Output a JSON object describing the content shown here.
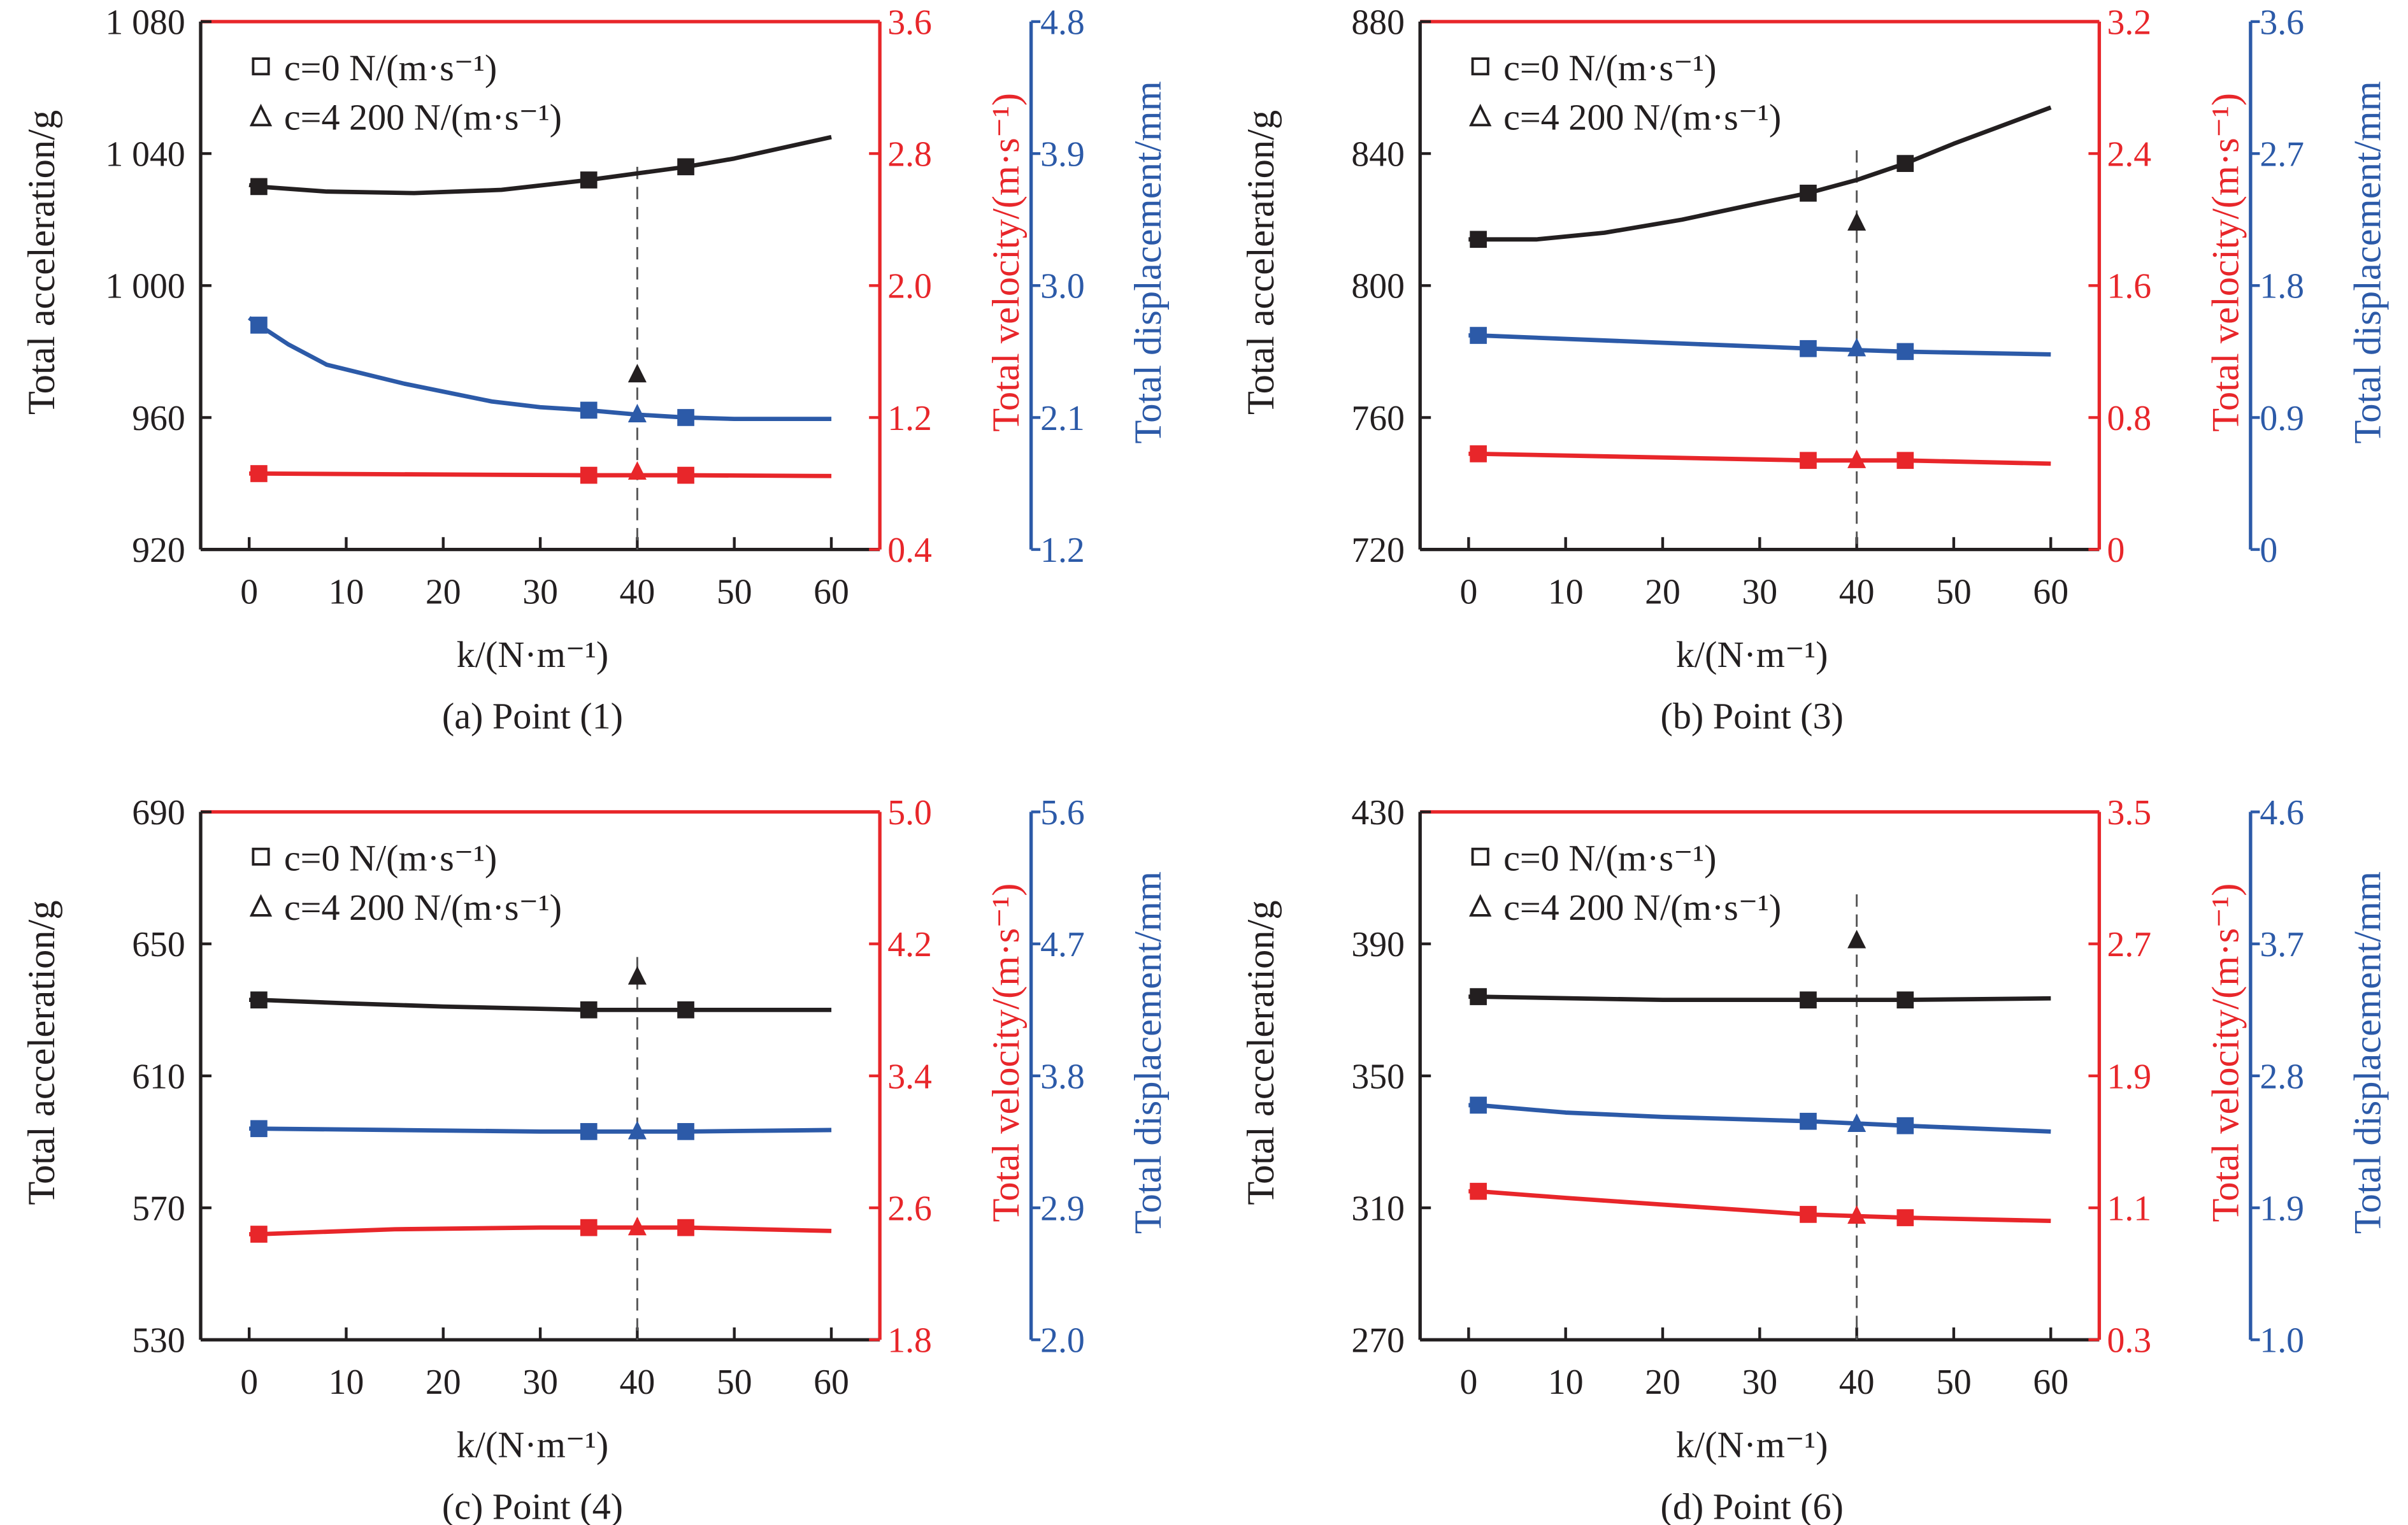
{
  "colors": {
    "acceleration": "#231f20",
    "velocity": "#e8262a",
    "displacement": "#2c5aa8",
    "guide": "#555555"
  },
  "chart_data": [
    {
      "type": "line",
      "caption": "(a) Point (1)",
      "xlabel": "k/(N·m⁻¹)",
      "xlim": [
        -5,
        65
      ],
      "xticks": [
        0,
        10,
        20,
        30,
        40,
        50,
        60
      ],
      "xtick_labels": [
        "0",
        "10",
        "20",
        "30",
        "40",
        "50",
        "60"
      ],
      "axes": {
        "left": {
          "label": "Total acceleration/g",
          "range": [
            920,
            1080
          ],
          "ticks": [
            920,
            960,
            1000,
            1040,
            1080
          ],
          "tick_labels": [
            "920",
            "960",
            "1 000",
            "1 040",
            "1 080"
          ]
        },
        "red": {
          "label": "Total velocity/(m·s⁻¹)",
          "range": [
            0.4,
            3.6
          ],
          "ticks": [
            0.4,
            1.2,
            2.0,
            2.8,
            3.6
          ],
          "tick_labels": [
            "0.4",
            "1.2",
            "2.0",
            "2.8",
            "3.6"
          ]
        },
        "blue": {
          "label": "Total displacement/mm",
          "range": [
            1.2,
            4.8
          ],
          "ticks": [
            1.2,
            2.1,
            3.0,
            3.9,
            4.8
          ],
          "tick_labels": [
            "1.2",
            "2.1",
            "3.0",
            "3.9",
            "4.8"
          ]
        }
      },
      "legend": {
        "placement": "top-left",
        "entries": [
          {
            "marker": "square",
            "label": "c=0 N/(m·s⁻¹)"
          },
          {
            "marker": "triangle",
            "label": "c=4 200 N/(m·s⁻¹)"
          }
        ]
      },
      "guide_line": {
        "k": 40,
        "top": 1036
      },
      "series": [
        {
          "quantity": "acceleration",
          "axis": "left",
          "curve": [
            [
              0,
              1030.5
            ],
            [
              1,
              1030
            ],
            [
              8,
              1028.5
            ],
            [
              17,
              1028
            ],
            [
              26,
              1029
            ],
            [
              35,
              1032
            ],
            [
              45,
              1036
            ],
            [
              50,
              1038.5
            ],
            [
              60,
              1045
            ]
          ],
          "markers": [
            [
              1,
              1030
            ],
            [
              35,
              1032
            ],
            [
              45,
              1036
            ]
          ],
          "c4200": [
            40,
            973
          ]
        },
        {
          "quantity": "displacement",
          "axis": "blue",
          "curve": [
            [
              0,
              2.78
            ],
            [
              1,
              2.73
            ],
            [
              4,
              2.6
            ],
            [
              8,
              2.46
            ],
            [
              16,
              2.33
            ],
            [
              25,
              2.21
            ],
            [
              30,
              2.17
            ],
            [
              35,
              2.15
            ],
            [
              40,
              2.12
            ],
            [
              45,
              2.1
            ],
            [
              50,
              2.09
            ],
            [
              60,
              2.09
            ]
          ],
          "markers": [
            [
              1,
              2.73
            ],
            [
              35,
              2.15
            ],
            [
              45,
              2.1
            ]
          ],
          "c4200": [
            40,
            2.12
          ]
        },
        {
          "quantity": "velocity",
          "axis": "red",
          "curve": [
            [
              0,
              0.86
            ],
            [
              1,
              0.86
            ],
            [
              35,
              0.85
            ],
            [
              45,
              0.85
            ],
            [
              60,
              0.845
            ]
          ],
          "markers": [
            [
              1,
              0.86
            ],
            [
              35,
              0.85
            ],
            [
              45,
              0.85
            ]
          ],
          "c4200": [
            40,
            0.87
          ]
        }
      ]
    },
    {
      "type": "line",
      "caption": "(b) Point (3)",
      "xlabel": "k/(N·m⁻¹)",
      "xlim": [
        -5,
        65
      ],
      "xticks": [
        0,
        10,
        20,
        30,
        40,
        50,
        60
      ],
      "xtick_labels": [
        "0",
        "10",
        "20",
        "30",
        "40",
        "50",
        "60"
      ],
      "axes": {
        "left": {
          "label": "Total acceleration/g",
          "range": [
            720,
            880
          ],
          "ticks": [
            720,
            760,
            800,
            840,
            880
          ],
          "tick_labels": [
            "720",
            "760",
            "800",
            "840",
            "880"
          ]
        },
        "red": {
          "label": "Total velocity/(m·s⁻¹)",
          "range": [
            0,
            3.2
          ],
          "ticks": [
            0,
            0.8,
            1.6,
            2.4,
            3.2
          ],
          "tick_labels": [
            "0",
            "0.8",
            "1.6",
            "2.4",
            "3.2"
          ]
        },
        "blue": {
          "label": "Total displacement/mm",
          "range": [
            0,
            3.6
          ],
          "ticks": [
            0,
            0.9,
            1.8,
            2.7,
            3.6
          ],
          "tick_labels": [
            "0",
            "0.9",
            "1.8",
            "2.7",
            "3.6"
          ]
        }
      },
      "legend": {
        "placement": "top-left",
        "entries": [
          {
            "marker": "square",
            "label": "c=0 N/(m·s⁻¹)"
          },
          {
            "marker": "triangle",
            "label": "c=4 200 N/(m·s⁻¹)"
          }
        ]
      },
      "guide_line": {
        "k": 40,
        "top": 841
      },
      "series": [
        {
          "quantity": "acceleration",
          "axis": "left",
          "curve": [
            [
              0,
              814
            ],
            [
              1,
              814
            ],
            [
              7,
              814
            ],
            [
              14,
              816
            ],
            [
              22,
              820
            ],
            [
              30,
              825
            ],
            [
              35,
              828
            ],
            [
              40,
              832
            ],
            [
              45,
              837
            ],
            [
              50,
              843
            ],
            [
              60,
              854
            ]
          ],
          "markers": [
            [
              1,
              814
            ],
            [
              35,
              828
            ],
            [
              45,
              837
            ]
          ],
          "c4200": [
            40,
            819
          ]
        },
        {
          "quantity": "displacement",
          "axis": "blue",
          "curve": [
            [
              0,
              1.46
            ],
            [
              1,
              1.46
            ],
            [
              35,
              1.37
            ],
            [
              45,
              1.35
            ],
            [
              60,
              1.33
            ]
          ],
          "markers": [
            [
              1,
              1.46
            ],
            [
              35,
              1.37
            ],
            [
              45,
              1.35
            ]
          ],
          "c4200": [
            40,
            1.37
          ]
        },
        {
          "quantity": "velocity",
          "axis": "red",
          "curve": [
            [
              0,
              0.58
            ],
            [
              1,
              0.58
            ],
            [
              35,
              0.54
            ],
            [
              45,
              0.54
            ],
            [
              60,
              0.52
            ]
          ],
          "markers": [
            [
              1,
              0.58
            ],
            [
              35,
              0.54
            ],
            [
              45,
              0.54
            ]
          ],
          "c4200": [
            40,
            0.54
          ]
        }
      ]
    },
    {
      "type": "line",
      "caption": "(c) Point (4)",
      "xlabel": "k/(N·m⁻¹)",
      "xlim": [
        -5,
        65
      ],
      "xticks": [
        0,
        10,
        20,
        30,
        40,
        50,
        60
      ],
      "xtick_labels": [
        "0",
        "10",
        "20",
        "30",
        "40",
        "50",
        "60"
      ],
      "axes": {
        "left": {
          "label": "Total acceleration/g",
          "range": [
            530,
            690
          ],
          "ticks": [
            530,
            570,
            610,
            650,
            690
          ],
          "tick_labels": [
            "530",
            "570",
            "610",
            "650",
            "690"
          ]
        },
        "red": {
          "label": "Total velocity/(m·s⁻¹)",
          "range": [
            1.8,
            5.0
          ],
          "ticks": [
            1.8,
            2.6,
            3.4,
            4.2,
            5.0
          ],
          "tick_labels": [
            "1.8",
            "2.6",
            "3.4",
            "4.2",
            "5.0"
          ]
        },
        "blue": {
          "label": "Total displacement/mm",
          "range": [
            2.0,
            5.6
          ],
          "ticks": [
            2.0,
            2.9,
            3.8,
            4.7,
            5.6
          ],
          "tick_labels": [
            "2.0",
            "2.9",
            "3.8",
            "4.7",
            "5.6"
          ]
        }
      },
      "legend": {
        "placement": "top-left",
        "entries": [
          {
            "marker": "square",
            "label": "c=0 N/(m·s⁻¹)"
          },
          {
            "marker": "triangle",
            "label": "c=4 200 N/(m·s⁻¹)"
          }
        ]
      },
      "guide_line": {
        "k": 40,
        "top": 646
      },
      "series": [
        {
          "quantity": "acceleration",
          "axis": "left",
          "curve": [
            [
              0,
              633
            ],
            [
              1,
              633
            ],
            [
              10,
              632
            ],
            [
              20,
              631
            ],
            [
              35,
              630
            ],
            [
              45,
              630
            ],
            [
              60,
              630
            ]
          ],
          "markers": [
            [
              1,
              633
            ],
            [
              35,
              630
            ],
            [
              45,
              630
            ]
          ],
          "c4200": [
            40,
            640
          ]
        },
        {
          "quantity": "displacement",
          "axis": "blue",
          "curve": [
            [
              0,
              3.44
            ],
            [
              1,
              3.44
            ],
            [
              15,
              3.43
            ],
            [
              30,
              3.42
            ],
            [
              35,
              3.42
            ],
            [
              45,
              3.42
            ],
            [
              60,
              3.43
            ]
          ],
          "markers": [
            [
              1,
              3.44
            ],
            [
              35,
              3.42
            ],
            [
              45,
              3.42
            ]
          ],
          "c4200": [
            40,
            3.42
          ]
        },
        {
          "quantity": "velocity",
          "axis": "red",
          "curve": [
            [
              0,
              2.44
            ],
            [
              1,
              2.44
            ],
            [
              15,
              2.47
            ],
            [
              30,
              2.48
            ],
            [
              35,
              2.48
            ],
            [
              45,
              2.48
            ],
            [
              60,
              2.46
            ]
          ],
          "markers": [
            [
              1,
              2.44
            ],
            [
              35,
              2.48
            ],
            [
              45,
              2.48
            ]
          ],
          "c4200": [
            40,
            2.48
          ]
        }
      ]
    },
    {
      "type": "line",
      "caption": "(d) Point (6)",
      "xlabel": "k/(N·m⁻¹)",
      "xlim": [
        -5,
        65
      ],
      "xticks": [
        0,
        10,
        20,
        30,
        40,
        50,
        60
      ],
      "xtick_labels": [
        "0",
        "10",
        "20",
        "30",
        "40",
        "50",
        "60"
      ],
      "axes": {
        "left": {
          "label": "Total acceleration/g",
          "range": [
            270,
            430
          ],
          "ticks": [
            270,
            310,
            350,
            390,
            430
          ],
          "tick_labels": [
            "270",
            "310",
            "350",
            "390",
            "430"
          ]
        },
        "red": {
          "label": "Total velocity/(m·s⁻¹)",
          "range": [
            0.3,
            3.5
          ],
          "ticks": [
            0.3,
            1.1,
            1.9,
            2.7,
            3.5
          ],
          "tick_labels": [
            "0.3",
            "1.1",
            "1.9",
            "2.7",
            "3.5"
          ]
        },
        "blue": {
          "label": "Total displacement/mm",
          "range": [
            1.0,
            4.6
          ],
          "ticks": [
            1.0,
            1.9,
            2.8,
            3.7,
            4.6
          ],
          "tick_labels": [
            "1.0",
            "1.9",
            "2.8",
            "3.7",
            "4.6"
          ]
        }
      },
      "legend": {
        "placement": "top-left",
        "entries": [
          {
            "marker": "square",
            "label": "c=0 N/(m·s⁻¹)"
          },
          {
            "marker": "triangle",
            "label": "c=4 200 N/(m·s⁻¹)"
          }
        ]
      },
      "guide_line": {
        "k": 40,
        "top": 405
      },
      "series": [
        {
          "quantity": "acceleration",
          "axis": "left",
          "curve": [
            [
              0,
              374
            ],
            [
              1,
              374
            ],
            [
              20,
              373
            ],
            [
              35,
              373
            ],
            [
              45,
              373
            ],
            [
              60,
              373.5
            ]
          ],
          "markers": [
            [
              1,
              374
            ],
            [
              35,
              373
            ],
            [
              45,
              373
            ]
          ],
          "c4200": [
            40,
            391
          ]
        },
        {
          "quantity": "displacement",
          "axis": "blue",
          "curve": [
            [
              0,
              2.6
            ],
            [
              1,
              2.6
            ],
            [
              10,
              2.55
            ],
            [
              20,
              2.52
            ],
            [
              35,
              2.49
            ],
            [
              45,
              2.46
            ],
            [
              60,
              2.42
            ]
          ],
          "markers": [
            [
              1,
              2.6
            ],
            [
              35,
              2.49
            ],
            [
              45,
              2.46
            ]
          ],
          "c4200": [
            40,
            2.47
          ]
        },
        {
          "quantity": "velocity",
          "axis": "red",
          "curve": [
            [
              0,
              1.2
            ],
            [
              1,
              1.2
            ],
            [
              10,
              1.16
            ],
            [
              20,
              1.12
            ],
            [
              35,
              1.06
            ],
            [
              45,
              1.04
            ],
            [
              60,
              1.02
            ]
          ],
          "markers": [
            [
              1,
              1.2
            ],
            [
              35,
              1.06
            ],
            [
              45,
              1.04
            ]
          ],
          "c4200": [
            40,
            1.05
          ]
        }
      ]
    }
  ]
}
